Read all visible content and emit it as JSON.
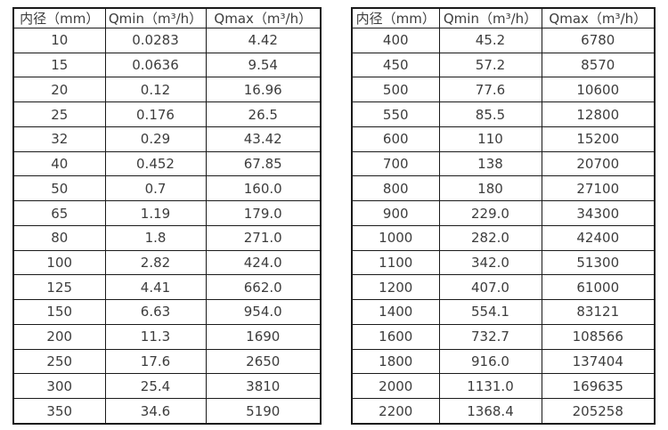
{
  "colors": {
    "background": "#ffffff",
    "border": "#1a1a1a",
    "text": "#3d3d3d"
  },
  "chart_data": [
    {
      "type": "table",
      "title": "",
      "columns": [
        "内径（mm）",
        "Qmin（m³/h）",
        "Qmax（m³/h）"
      ],
      "rows": [
        [
          "10",
          "0.0283",
          "4.42"
        ],
        [
          "15",
          "0.0636",
          "9.54"
        ],
        [
          "20",
          "0.12",
          "16.96"
        ],
        [
          "25",
          "0.176",
          "26.5"
        ],
        [
          "32",
          "0.29",
          "43.42"
        ],
        [
          "40",
          "0.452",
          "67.85"
        ],
        [
          "50",
          "0.7",
          "160.0"
        ],
        [
          "65",
          "1.19",
          "179.0"
        ],
        [
          "80",
          "1.8",
          "271.0"
        ],
        [
          "100",
          "2.82",
          "424.0"
        ],
        [
          "125",
          "4.41",
          "662.0"
        ],
        [
          "150",
          "6.63",
          "954.0"
        ],
        [
          "200",
          "11.3",
          "1690"
        ],
        [
          "250",
          "17.6",
          "2650"
        ],
        [
          "300",
          "25.4",
          "3810"
        ],
        [
          "350",
          "34.6",
          "5190"
        ]
      ]
    },
    {
      "type": "table",
      "title": "",
      "columns": [
        "内径（mm）",
        "Qmin（m³/h）",
        "Qmax（m³/h）"
      ],
      "rows": [
        [
          "400",
          "45.2",
          "6780"
        ],
        [
          "450",
          "57.2",
          "8570"
        ],
        [
          "500",
          "77.6",
          "10600"
        ],
        [
          "550",
          "85.5",
          "12800"
        ],
        [
          "600",
          "110",
          "15200"
        ],
        [
          "700",
          "138",
          "20700"
        ],
        [
          "800",
          "180",
          "27100"
        ],
        [
          "900",
          "229.0",
          "34300"
        ],
        [
          "1000",
          "282.0",
          "42400"
        ],
        [
          "1100",
          "342.0",
          "51300"
        ],
        [
          "1200",
          "407.0",
          "61000"
        ],
        [
          "1400",
          "554.1",
          "83121"
        ],
        [
          "1600",
          "732.7",
          "108566"
        ],
        [
          "1800",
          "916.0",
          "137404"
        ],
        [
          "2000",
          "1131.0",
          "169635"
        ],
        [
          "2200",
          "1368.4",
          "205258"
        ]
      ]
    }
  ]
}
